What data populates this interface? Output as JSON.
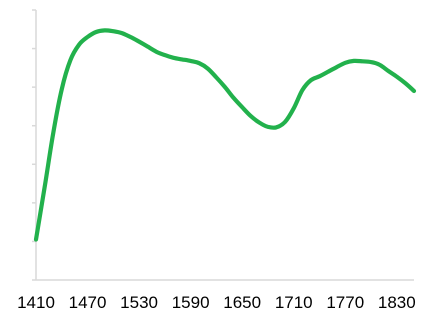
{
  "chart_data": {
    "type": "line",
    "title": "",
    "xlabel": "",
    "ylabel": "",
    "x_tick_labels": [
      "1410",
      "1470",
      "1530",
      "1590",
      "1650",
      "1710",
      "1770",
      "1830"
    ],
    "xlim": [
      1410,
      1850
    ],
    "ylim": [
      0,
      7
    ],
    "y_tick_labels_visible": false,
    "grid": false,
    "legend": "none",
    "series": [
      {
        "color": "#22b14c",
        "x": [
          1410,
          1420,
          1430,
          1440,
          1450,
          1460,
          1470,
          1480,
          1490,
          1500,
          1510,
          1520,
          1530,
          1540,
          1550,
          1560,
          1570,
          1580,
          1590,
          1600,
          1610,
          1620,
          1630,
          1640,
          1650,
          1660,
          1670,
          1680,
          1690,
          1700,
          1710,
          1720,
          1730,
          1740,
          1750,
          1760,
          1770,
          1780,
          1790,
          1800,
          1810,
          1820,
          1830,
          1840,
          1850
        ],
        "y": [
          1.05,
          2.4,
          3.8,
          4.95,
          5.7,
          6.1,
          6.3,
          6.43,
          6.47,
          6.45,
          6.4,
          6.3,
          6.18,
          6.05,
          5.92,
          5.83,
          5.76,
          5.72,
          5.68,
          5.62,
          5.48,
          5.25,
          5.0,
          4.72,
          4.48,
          4.25,
          4.08,
          3.97,
          3.96,
          4.1,
          4.45,
          4.92,
          5.18,
          5.28,
          5.4,
          5.52,
          5.63,
          5.68,
          5.67,
          5.65,
          5.58,
          5.42,
          5.27,
          5.1,
          4.9
        ]
      }
    ]
  }
}
